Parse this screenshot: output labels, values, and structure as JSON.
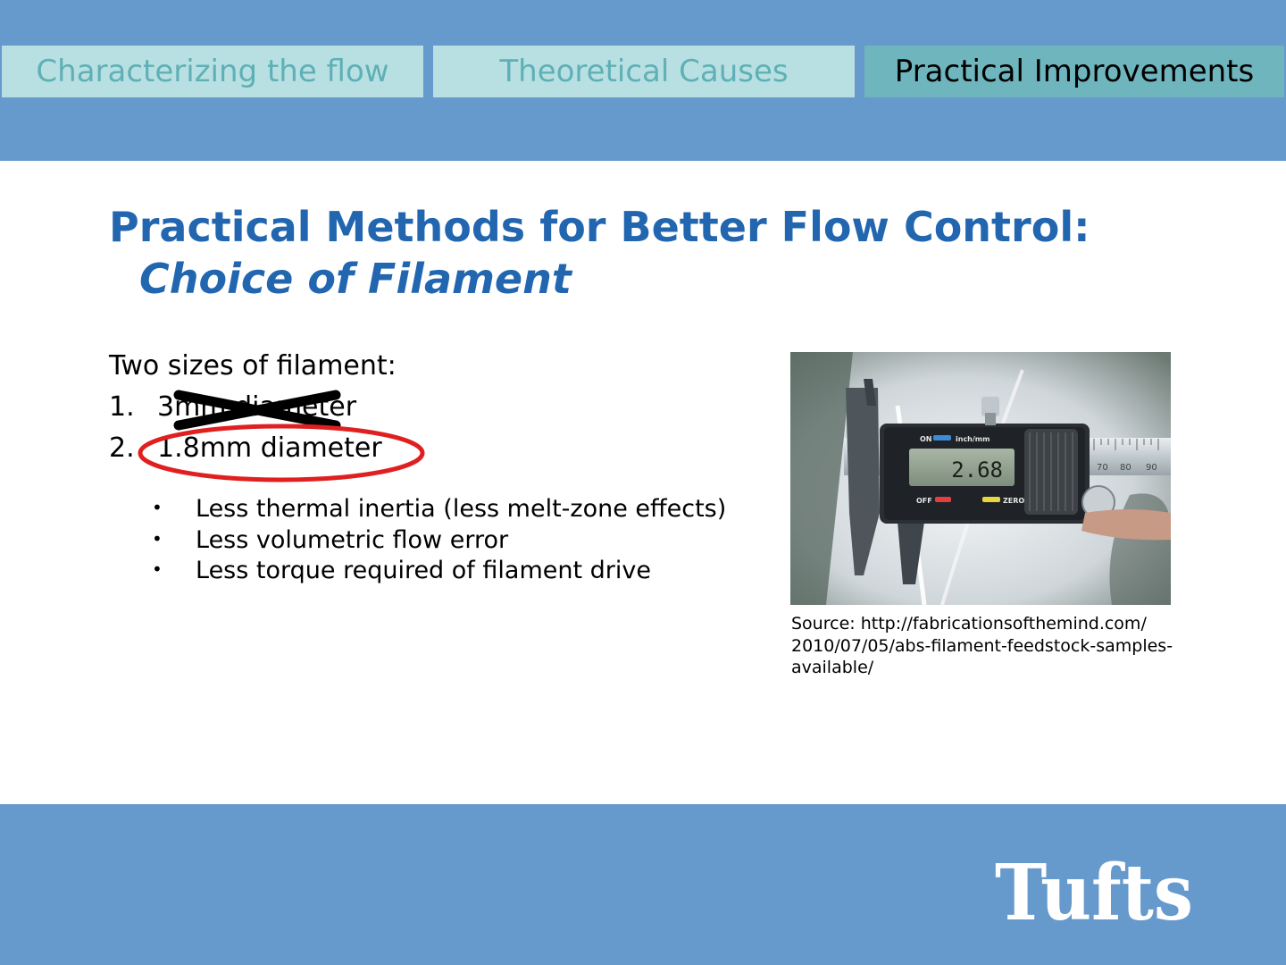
{
  "tabs": [
    {
      "label": "Characterizing the flow",
      "active": false
    },
    {
      "label": "Theoretical Causes",
      "active": false
    },
    {
      "label": "Practical Improvements",
      "active": true
    }
  ],
  "slide": {
    "title": "Practical Methods for Better Flow Control:",
    "subtitle": "Choice of Filament",
    "intro": "Two sizes of filament:",
    "list": [
      {
        "number": "1.",
        "text": "3mm diameter",
        "struck_out": true
      },
      {
        "number": "2.",
        "text": "1.8mm diameter",
        "circled": true
      }
    ],
    "bullets": [
      "Less thermal inertia (less melt-zone effects)",
      "Less volumetric flow error",
      "Less torque required of filament drive"
    ],
    "photo": {
      "label_on": "ON",
      "label_units": "inch/mm",
      "label_off": "OFF",
      "label_zero": "ZERO",
      "display_value": "2.68",
      "scale_marks": [
        "70",
        "80",
        "90"
      ]
    },
    "source_lines": [
      "Source: http://fabricationsofthemind.com/",
      "2010/07/05/abs-filament-feedstock-samples-",
      "available/"
    ]
  },
  "footer": {
    "logo_text": "Tufts"
  },
  "colors": {
    "band": "#6699cc",
    "tab_inactive_bg": "#b8e0e2",
    "tab_inactive_text": "#5fb0b6",
    "tab_active_bg": "#6fb5bd",
    "title": "#2266b0",
    "annotation_circle": "#e02020"
  }
}
